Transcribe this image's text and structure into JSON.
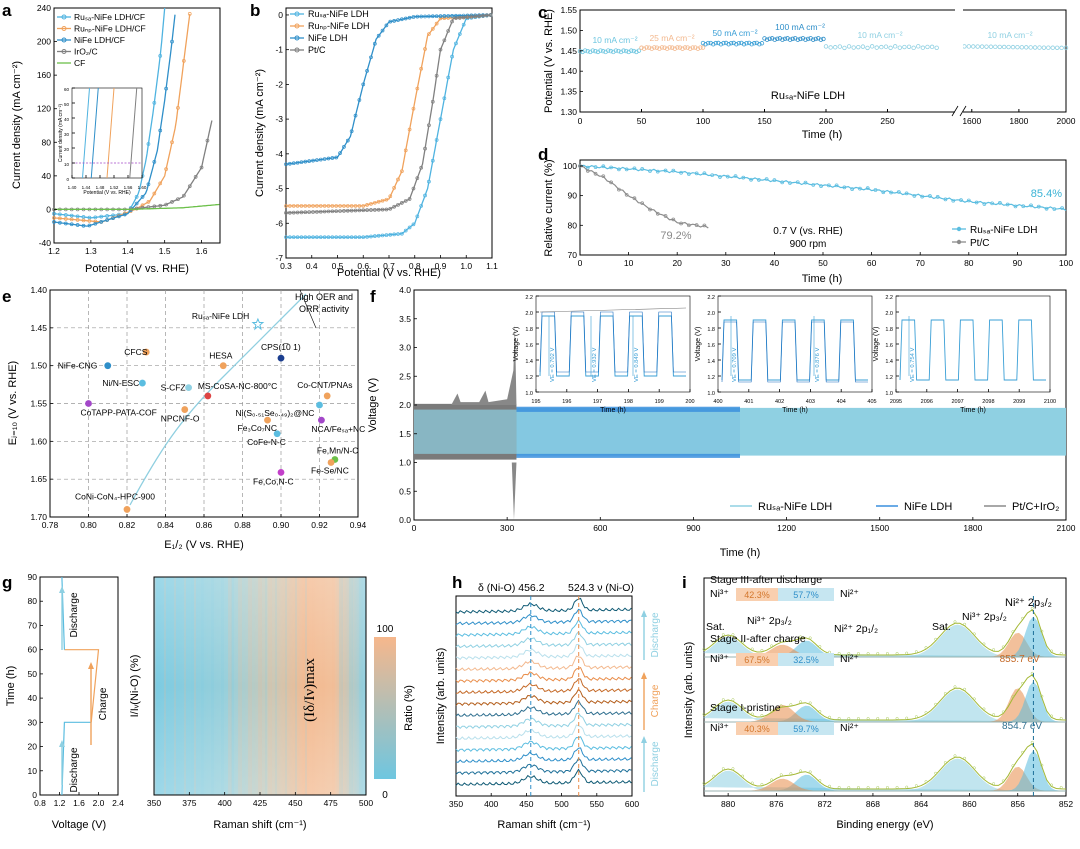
{
  "panels": {
    "a": {
      "label": "a",
      "xlabel": "Potential (V vs. RHE)",
      "ylabel": "Current density (mA cm⁻²)",
      "xticks": [
        "1.2",
        "1.3",
        "1.4",
        "1.5",
        "1.6"
      ],
      "yticks": [
        "-40",
        "0",
        "40",
        "80",
        "120",
        "160",
        "200",
        "240"
      ],
      "legend": [
        "Ruₛₐ-NiFe LDH/CF",
        "Ruₙₚ-NiFe LDH/CF",
        "NiFe LDH/CF",
        "IrO₂/C",
        "CF"
      ],
      "inset_xlabel": "Potential (V vs. RHE)",
      "inset_ylabel": "Current density (mA cm⁻²)",
      "inset_xticks": [
        "1.40",
        "1.44",
        "1.48",
        "1.52",
        "1.56",
        "1.60"
      ],
      "inset_yticks": [
        "0",
        "10",
        "20",
        "30",
        "40",
        "50",
        "60"
      ]
    },
    "b": {
      "label": "b",
      "xlabel": "Potential (V vs. RHE)",
      "ylabel": "Current density (mA cm⁻²)",
      "xticks": [
        "0.3",
        "0.4",
        "0.5",
        "0.6",
        "0.7",
        "0.8",
        "0.9",
        "1.0",
        "1.1"
      ],
      "yticks": [
        "-7",
        "-6",
        "-5",
        "-4",
        "-3",
        "-2",
        "-1",
        "0"
      ],
      "legend": [
        "Ruₛₐ-NiFe LDH",
        "Ruₙₚ-NiFe LDH",
        "NiFe LDH",
        "Pt/C"
      ]
    },
    "c": {
      "label": "c",
      "xlabel": "Time (h)",
      "ylabel": "Potential (V vs. RHE)",
      "xticks": [
        "0",
        "50",
        "100",
        "150",
        "200",
        "250",
        "1600",
        "1800",
        "2000"
      ],
      "yticks": [
        "1.30",
        "1.35",
        "1.40",
        "1.45",
        "1.50",
        "1.55"
      ],
      "annotations": [
        "10 mA cm⁻²",
        "25 mA cm⁻²",
        "50 mA cm⁻²",
        "100 mA cm⁻²",
        "10 mA cm⁻²",
        "10 mA cm⁻²"
      ],
      "sample": "Ruₛₐ-NiFe LDH"
    },
    "d": {
      "label": "d",
      "xlabel": "Time (h)",
      "ylabel": "Relative current (%)",
      "xticks": [
        "0",
        "10",
        "20",
        "30",
        "40",
        "50",
        "60",
        "70",
        "80",
        "90",
        "100"
      ],
      "yticks": [
        "70",
        "80",
        "90",
        "100"
      ],
      "end_ru": "85.4%",
      "end_pt": "79.2%",
      "cond1": "0.7 V (vs. RHE)",
      "cond2": "900 rpm",
      "legend": [
        "Ruₛₐ-NiFe LDH",
        "Pt/C"
      ]
    },
    "e": {
      "label": "e",
      "xlabel": "E₁/₂ (V vs. RHE)",
      "ylabel": "Eⱼ₌₁₀ (V vs. RHE)",
      "xticks": [
        "0.78",
        "0.80",
        "0.82",
        "0.84",
        "0.86",
        "0.88",
        "0.90",
        "0.92",
        "0.94"
      ],
      "yticks": [
        "1.40",
        "1.45",
        "1.50",
        "1.55",
        "1.60",
        "1.65",
        "1.70"
      ],
      "corner": "High OER and ORR activity",
      "corner1": "High OER and",
      "corner2": "ORR activity"
    },
    "f": {
      "label": "f",
      "xlabel": "Time (h)",
      "ylabel": "Voltage (V)",
      "xticks": [
        "0",
        "300",
        "600",
        "900",
        "1200",
        "1500",
        "1800",
        "2100"
      ],
      "yticks": [
        "0.0",
        "0.5",
        "1.0",
        "1.5",
        "2.0",
        "2.5",
        "3.0",
        "3.5",
        "4.0"
      ],
      "legend": [
        "Ruₛₐ-NiFe LDH",
        "NiFe LDH",
        "Pt/C+IrO₂"
      ],
      "inset1": {
        "xticks": [
          "195",
          "196",
          "197",
          "198",
          "199",
          "200"
        ],
        "labels": [
          "VE = 0.702 V",
          "VE = 0.932 V",
          "VE = 0.849 V"
        ]
      },
      "inset2": {
        "xticks": [
          "400",
          "401",
          "402",
          "403",
          "404",
          "405"
        ],
        "labels": [
          "VE = 0.709 V",
          "VE = 0.876 V"
        ]
      },
      "inset3": {
        "xticks": [
          "2095",
          "2096",
          "2097",
          "2098",
          "2099",
          "2100"
        ],
        "labels": [
          "VE = 0.754 V"
        ]
      },
      "inset_xlabel": "Time (h)",
      "inset_ylabel": "Voltage (V)",
      "inset_yticks": [
        "1.0",
        "1.2",
        "1.4",
        "1.6",
        "1.8",
        "2.0",
        "2.2"
      ]
    },
    "g": {
      "label": "g",
      "xlabel1": "Voltage (V)",
      "ylabel1": "Time (h)",
      "xticks1": [
        "0.8",
        "1.2",
        "1.6",
        "2.0",
        "2.4"
      ],
      "yticks1": [
        "0",
        "10",
        "20",
        "30",
        "40",
        "50",
        "60",
        "70",
        "80",
        "90"
      ],
      "states": [
        "Discharge",
        "Charge",
        "Discharge"
      ],
      "xlabel2": "Raman shift (cm⁻¹)",
      "ylabel2": "I/Iᵥ(Ni-O) (%)",
      "xticks2": [
        "350",
        "375",
        "400",
        "425",
        "450",
        "475",
        "500"
      ],
      "annotation": "(Iδ/Iν)max",
      "cbar_label": "Ratio (%)",
      "cbar_max": "100",
      "cbar_min": "0"
    },
    "h": {
      "label": "h",
      "xlabel": "Raman shift (cm⁻¹)",
      "ylabel": "Intensity (arb. units)",
      "xticks": [
        "350",
        "400",
        "450",
        "500",
        "550",
        "600"
      ],
      "peak1": "δ (Ni-O) 456.2",
      "peak2": "524.3 ν (Ni-O)",
      "states": [
        "Discharge",
        "Charge",
        "Discharge"
      ]
    },
    "i": {
      "label": "i",
      "xlabel": "Binding energy (eV)",
      "ylabel": "Intensity (arb. units)",
      "xticks": [
        "880",
        "876",
        "872",
        "868",
        "864",
        "860",
        "856",
        "852"
      ],
      "stages": [
        {
          "title": "Stage III-after discharge",
          "ni3": "42.3%",
          "ni2": "57.7%"
        },
        {
          "title": "Stage II-after charge",
          "ni3": "67.5%",
          "ni2": "32.5%",
          "ev": "855.7 eV"
        },
        {
          "title": "Stage I-pristine",
          "ni3": "40.3%",
          "ni2": "59.7%",
          "ev": "854.7 eV"
        }
      ],
      "ni3_label": "Ni³⁺",
      "ni2_label": "Ni²⁺",
      "sat": "Sat.",
      "p32": "Ni³⁺ 2p₃/₂",
      "p12": "Ni²⁺ 2p₁/₂",
      "top_label": "Ni²⁺ 2p₃/₂",
      "p32b": "Ni³⁺ 2p₃/₂"
    }
  },
  "chart_data": [
    {
      "panel": "a",
      "type": "line",
      "title": "",
      "xlabel": "Potential (V vs. RHE)",
      "ylabel": "Current density (mA cm-2)",
      "xlim": [
        1.2,
        1.65
      ],
      "ylim": [
        -40,
        240
      ],
      "series": [
        {
          "name": "RuSA-NiFe LDH/CF",
          "x": [
            1.2,
            1.3,
            1.4,
            1.43,
            1.45,
            1.47,
            1.49,
            1.5
          ],
          "y": [
            -5,
            -10,
            -5,
            20,
            60,
            120,
            190,
            240
          ]
        },
        {
          "name": "RuNP-NiFe LDH/CF",
          "x": [
            1.2,
            1.33,
            1.42,
            1.46,
            1.5,
            1.53,
            1.55,
            1.57
          ],
          "y": [
            -10,
            -15,
            0,
            10,
            40,
            100,
            170,
            240
          ]
        },
        {
          "name": "NiFe LDH/CF",
          "x": [
            1.2,
            1.29,
            1.4,
            1.45,
            1.48,
            1.5,
            1.52,
            1.53
          ],
          "y": [
            -15,
            -20,
            -5,
            20,
            70,
            130,
            200,
            240
          ]
        },
        {
          "name": "IrO2/C",
          "x": [
            1.2,
            1.4,
            1.5,
            1.55,
            1.6,
            1.63
          ],
          "y": [
            0,
            0,
            5,
            15,
            50,
            110
          ]
        },
        {
          "name": "CF",
          "x": [
            1.2,
            1.4,
            1.55,
            1.65
          ],
          "y": [
            0,
            0,
            2,
            6
          ]
        }
      ]
    },
    {
      "panel": "b",
      "type": "line",
      "xlabel": "Potential (V vs. RHE)",
      "ylabel": "Current density (mA cm-2)",
      "xlim": [
        0.3,
        1.1
      ],
      "ylim": [
        -7,
        0.2
      ],
      "series": [
        {
          "name": "RuSA-NiFe LDH",
          "x": [
            0.3,
            0.6,
            0.75,
            0.8,
            0.85,
            0.9,
            0.95,
            1.0,
            1.1
          ],
          "y": [
            -6.4,
            -6.4,
            -6.3,
            -6.0,
            -5.0,
            -3.0,
            -1.0,
            -0.1,
            0
          ]
        },
        {
          "name": "RuNP-NiFe LDH",
          "x": [
            0.3,
            0.6,
            0.7,
            0.75,
            0.8,
            0.85,
            0.9,
            1.1
          ],
          "y": [
            -5.5,
            -5.5,
            -5.3,
            -4.5,
            -2.5,
            -0.6,
            -0.1,
            0
          ]
        },
        {
          "name": "NiFe LDH",
          "x": [
            0.3,
            0.5,
            0.55,
            0.6,
            0.65,
            0.7,
            0.8,
            1.1
          ],
          "y": [
            -4.3,
            -4.1,
            -3.5,
            -2.0,
            -0.7,
            -0.2,
            -0.05,
            0
          ]
        },
        {
          "name": "Pt/C",
          "x": [
            0.3,
            0.7,
            0.78,
            0.83,
            0.87,
            0.9,
            0.95,
            1.1
          ],
          "y": [
            -5.7,
            -5.6,
            -5.3,
            -4.3,
            -2.5,
            -1.0,
            -0.1,
            0
          ]
        }
      ]
    },
    {
      "panel": "c",
      "type": "scatter",
      "xlabel": "Time (h)",
      "ylabel": "Potential (V vs. RHE)",
      "ylim": [
        1.3,
        1.55
      ],
      "series": [
        {
          "name": "10 mA cm-2",
          "x": [
            0,
            50
          ],
          "y": [
            1.449,
            1.449
          ]
        },
        {
          "name": "25 mA cm-2",
          "x": [
            50,
            100
          ],
          "y": [
            1.457,
            1.457
          ]
        },
        {
          "name": "50 mA cm-2",
          "x": [
            100,
            150
          ],
          "y": [
            1.468,
            1.468
          ]
        },
        {
          "name": "100 mA cm-2",
          "x": [
            150,
            200
          ],
          "y": [
            1.479,
            1.479
          ]
        },
        {
          "name": "10 mA cm-2",
          "x": [
            200,
            290
          ],
          "y": [
            1.459,
            1.459
          ]
        },
        {
          "name": "10 mA cm-2",
          "x": [
            1550,
            2000
          ],
          "y": [
            1.459,
            1.459
          ]
        }
      ]
    },
    {
      "panel": "d",
      "type": "line",
      "xlabel": "Time (h)",
      "ylabel": "Relative current (%)",
      "xlim": [
        0,
        100
      ],
      "ylim": [
        70,
        102
      ],
      "series": [
        {
          "name": "RuSA-NiFe LDH",
          "x": [
            0,
            20,
            40,
            60,
            80,
            100
          ],
          "y": [
            100,
            98,
            95,
            92,
            88,
            85.4
          ]
        },
        {
          "name": "Pt/C",
          "x": [
            0,
            5,
            10,
            15,
            20,
            27
          ],
          "y": [
            100,
            96,
            90,
            85,
            81,
            79.2
          ]
        }
      ]
    },
    {
      "panel": "e",
      "type": "scatter",
      "xlabel": "E1/2 (V vs. RHE)",
      "ylabel": "Ej=10 (V vs. RHE)",
      "xlim": [
        0.78,
        0.94
      ],
      "ylim": [
        1.4,
        1.7
      ],
      "points": [
        {
          "name": "RuSA-NiFe LDH",
          "x": 0.888,
          "y": 1.445
        },
        {
          "name": "CFCS",
          "x": 0.83,
          "y": 1.482
        },
        {
          "name": "NiFe-CNG",
          "x": 0.81,
          "y": 1.5
        },
        {
          "name": "HESA",
          "x": 0.87,
          "y": 1.5
        },
        {
          "name": "CPS(1 0 1)",
          "x": 0.9,
          "y": 1.49
        },
        {
          "name": "Ni/N-ESC",
          "x": 0.828,
          "y": 1.523
        },
        {
          "name": "S-CFZ",
          "x": 0.852,
          "y": 1.529
        },
        {
          "name": "MS-CoSA-NC-800°C",
          "x": 0.862,
          "y": 1.54
        },
        {
          "name": "Co-CNT/PNAs",
          "x": 0.924,
          "y": 1.54
        },
        {
          "name": "CoTAPP-PATA-COF",
          "x": 0.8,
          "y": 1.55
        },
        {
          "name": "NPCNF-O",
          "x": 0.85,
          "y": 1.558
        },
        {
          "name": "Ni(S0.51Se0.49)2@NC",
          "x": 0.92,
          "y": 1.552
        },
        {
          "name": "Fe3Co7NC",
          "x": 0.893,
          "y": 1.572
        },
        {
          "name": "NCA/FeSA+NC",
          "x": 0.921,
          "y": 1.572
        },
        {
          "name": "CoFe-N-C",
          "x": 0.898,
          "y": 1.59
        },
        {
          "name": "Fe,Mn/N-C",
          "x": 0.928,
          "y": 1.624
        },
        {
          "name": "Fe-Se/NC",
          "x": 0.926,
          "y": 1.628
        },
        {
          "name": "Fe,Co,N-C",
          "x": 0.9,
          "y": 1.641
        },
        {
          "name": "CoNi-CoN4-HPC-900",
          "x": 0.82,
          "y": 1.69
        }
      ]
    },
    {
      "panel": "f",
      "type": "line",
      "xlabel": "Time (h)",
      "ylabel": "Voltage (V)",
      "xlim": [
        0,
        2100
      ],
      "ylim": [
        0,
        4
      ],
      "series": [
        {
          "name": "RuSA-NiFe LDH",
          "x": [
            0,
            2100
          ],
          "charge": 1.9,
          "discharge": 1.15
        },
        {
          "name": "NiFe LDH",
          "x": [
            0,
            1050
          ],
          "charge": 1.95,
          "discharge": 1.1
        },
        {
          "name": "Pt/C+IrO2",
          "x": [
            0,
            330
          ],
          "charge": 2.0,
          "discharge": 1.1
        }
      ]
    },
    {
      "panel": "g",
      "type": "heatmap",
      "xlabel": "Raman shift (cm-1)",
      "ylabel": "Time (h)",
      "xlim": [
        350,
        500
      ],
      "ylim": [
        0,
        90
      ],
      "zlim": [
        0,
        100
      ],
      "voltage_profile": {
        "time": [
          0,
          30,
          30,
          60,
          60,
          90
        ],
        "voltage": [
          1.25,
          1.3,
          1.85,
          2.0,
          1.3,
          1.25
        ]
      }
    },
    {
      "panel": "h",
      "type": "line",
      "xlabel": "Raman shift (cm-1)",
      "ylabel": "Intensity (arb. units)",
      "xlim": [
        350,
        600
      ],
      "peaks": [
        456.2,
        524.3
      ],
      "n_spectra": 17
    },
    {
      "panel": "i",
      "type": "line",
      "xlabel": "Binding energy (eV)",
      "ylabel": "Intensity (arb. units)",
      "xlim": [
        882,
        852
      ],
      "stages": [
        {
          "name": "Stage III-after discharge",
          "Ni3+": 42.3,
          "Ni2+": 57.7
        },
        {
          "name": "Stage II-after charge",
          "Ni3+": 67.5,
          "Ni2+": 32.5,
          "peak_eV": 855.7
        },
        {
          "name": "Stage I-pristine",
          "Ni3+": 40.3,
          "Ni2+": 59.7,
          "peak_eV": 854.7
        }
      ]
    }
  ]
}
